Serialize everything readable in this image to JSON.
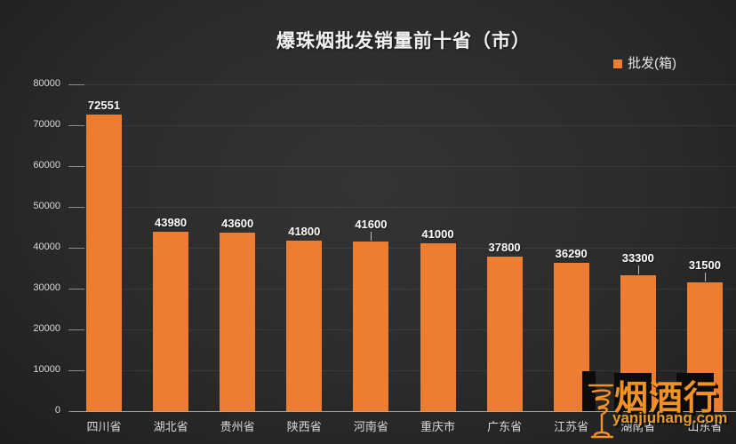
{
  "chart_data": {
    "type": "bar",
    "title": "爆珠烟批发销量前十省（市）",
    "categories": [
      "四川省",
      "湖北省",
      "贵州省",
      "陕西省",
      "河南省",
      "重庆市",
      "广东省",
      "江苏省",
      "湖南省",
      "山东省"
    ],
    "series": [
      {
        "name": "批发(箱)",
        "values": [
          72551,
          43980,
          43600,
          41800,
          41600,
          41000,
          37800,
          36290,
          33300,
          31500
        ]
      }
    ],
    "xlabel": "",
    "ylabel": "",
    "ylim": [
      0,
      80000
    ],
    "ytick_step": 10000,
    "grid": "horizontal-faint",
    "legend_position": "top-right",
    "bar_color": "#ED7D31",
    "value_label_color": "#FFFFFF",
    "axis_label_color": "#D9D9D9",
    "background": "dark-gray-gradient",
    "raised_label_indices": [
      4,
      8,
      9
    ]
  },
  "legend": {
    "label": "批发(箱)",
    "swatch_color": "#ED7D31"
  },
  "watermark": {
    "brand": "烟酒行",
    "site": "yanjiuhang.com",
    "icon": "hookah-pipe-icon",
    "brand_color": "#F29222"
  }
}
